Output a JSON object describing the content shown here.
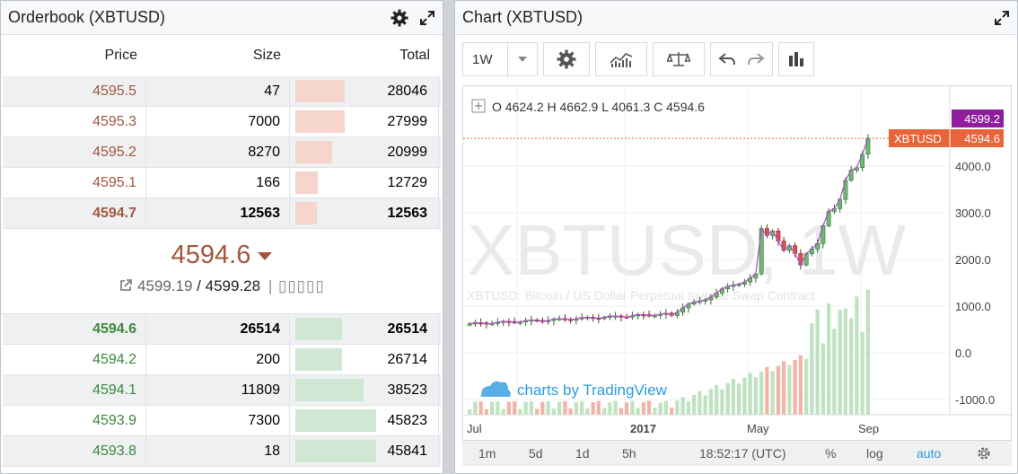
{
  "orderbook": {
    "title": "Orderbook (XBTUSD)",
    "columns": {
      "price": "Price",
      "size": "Size",
      "total": "Total"
    },
    "asks": [
      {
        "price": "4595.5",
        "size": "47",
        "total": "28046",
        "fill": 0.61
      },
      {
        "price": "4595.3",
        "size": "7000",
        "total": "27999",
        "fill": 0.61
      },
      {
        "price": "4595.2",
        "size": "8270",
        "total": "20999",
        "fill": 0.46
      },
      {
        "price": "4595.1",
        "size": "166",
        "total": "12729",
        "fill": 0.28
      },
      {
        "price": "4594.7",
        "size": "12563",
        "total": "12563",
        "fill": 0.27
      }
    ],
    "last_price": "4594.6",
    "mark_price": "4599.19",
    "index_price": "4599.28",
    "separator": "/",
    "marks_text": "| ▯▯▯▯▯",
    "bids": [
      {
        "price": "4594.6",
        "size": "26514",
        "total": "26514",
        "fill": 0.58
      },
      {
        "price": "4594.2",
        "size": "200",
        "total": "26714",
        "fill": 0.58
      },
      {
        "price": "4594.1",
        "size": "11809",
        "total": "38523",
        "fill": 0.84
      },
      {
        "price": "4593.9",
        "size": "7300",
        "total": "45823",
        "fill": 1.0
      },
      {
        "price": "4593.8",
        "size": "18",
        "total": "45841",
        "fill": 1.0
      }
    ],
    "colors": {
      "ask_text": "#a3583c",
      "bid_text": "#3c8a3c",
      "ask_bar": "#f5d5cc",
      "bid_bar": "#cfe7d3"
    }
  },
  "chart": {
    "title": "Chart (XBTUSD)",
    "interval": "1W",
    "ohlc": {
      "o_label": "O",
      "o": "4624.2",
      "h_label": "H",
      "h": "4662.9",
      "l_label": "L",
      "l": "4061.3",
      "c_label": "C",
      "c": "4594.6"
    },
    "watermark": "XBTUSD, 1W",
    "watermark_sub": "XBTUSD: Bitcoin / US Dollar Perpetual Inverse Swap Contract",
    "brand": "charts by TradingView",
    "price_labels": [
      "4000.0",
      "3000.0",
      "2000.0",
      "1000.0",
      "0.0",
      "-1000.0"
    ],
    "price_values": [
      4000,
      3000,
      2000,
      1000,
      0,
      -1000
    ],
    "mark_tag": "4599.2",
    "last_tag_symbol": "XBTUSD",
    "last_tag_price": "4594.6",
    "x_labels": [
      "Jul",
      "2017",
      "May",
      "Sep"
    ],
    "ranges": [
      "1m",
      "5d",
      "1d",
      "5h"
    ],
    "time": "18:52:17 (UTC)",
    "opts": [
      "%",
      "log",
      "auto"
    ],
    "colors": {
      "up": "#6dbb6f",
      "down": "#d9534f",
      "mark": "#8e1e9e",
      "last": "#e8643a",
      "accent": "#2e9be0"
    }
  }
}
